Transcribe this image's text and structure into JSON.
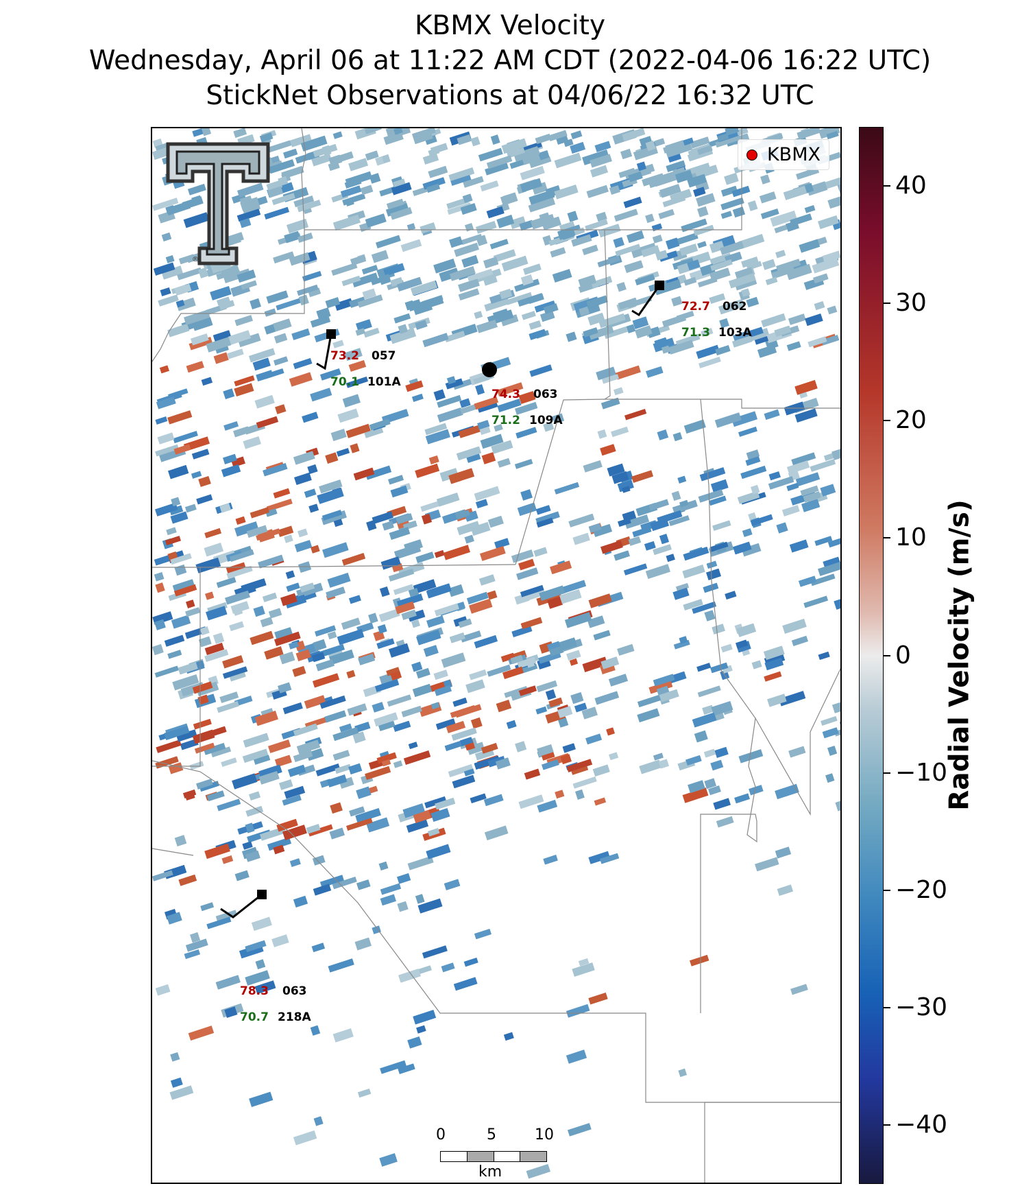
{
  "title": {
    "line1": "KBMX Velocity",
    "line2": "Wednesday, April 06 at 11:22 AM CDT (2022-04-06 16:22 UTC)",
    "line3": "StickNet Observations at 04/06/22 16:32 UTC"
  },
  "legend": {
    "label": "KBMX",
    "marker_color": "#e30000"
  },
  "colorbar": {
    "label": "Radial Velocity (m/s)",
    "ticks": [
      "40",
      "30",
      "20",
      "10",
      "0",
      "−10",
      "−20",
      "−30",
      "−40"
    ],
    "range": [
      -45,
      45
    ]
  },
  "stations": [
    {
      "id": "101A",
      "temp": "73.2",
      "dew": "70.1",
      "dir": "057"
    },
    {
      "id": "109A",
      "temp": "74.3",
      "dew": "71.2",
      "dir": "063"
    },
    {
      "id": "103A",
      "temp": "72.7",
      "dew": "71.3",
      "dir": "062"
    },
    {
      "id": "218A",
      "temp": "78.3",
      "dew": "70.7",
      "dir": "063"
    }
  ],
  "scale_bar": {
    "ticks": [
      "0",
      "5",
      "10"
    ],
    "unit": "km"
  },
  "logo": {
    "text": "T",
    "icon": "texas-tech-double-t-logo"
  }
}
